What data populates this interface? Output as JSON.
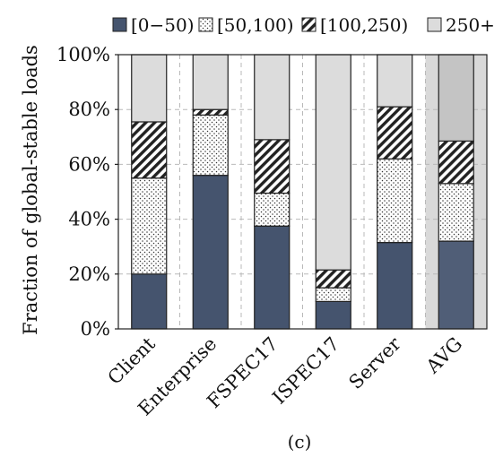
{
  "chart_data": {
    "type": "bar",
    "stacked": true,
    "categories": [
      "Client",
      "Enterprise",
      "FSPEC17",
      "ISPEC17",
      "Server",
      "AVG"
    ],
    "series": [
      {
        "name": "[0−50)",
        "values": [
          20,
          56,
          37.5,
          10,
          31.5,
          32
        ],
        "color": "#45546e",
        "pattern": "solid"
      },
      {
        "name": "[50,100)",
        "values": [
          35,
          22,
          12,
          5,
          30.5,
          21
        ],
        "color": "#ffffff",
        "pattern": "dots"
      },
      {
        "name": "[100,250)",
        "values": [
          20.5,
          2,
          19.5,
          6.5,
          19,
          15.5
        ],
        "color": "#ffffff",
        "pattern": "hatch"
      },
      {
        "name": "250+",
        "values": [
          24.5,
          20,
          31,
          78.5,
          19,
          31.5
        ],
        "color": "#dcdcdc",
        "pattern": "solid"
      }
    ],
    "ylabel": "Fraction of global-stable loads",
    "ylim": [
      0,
      100
    ],
    "yticks": [
      "0%",
      "20%",
      "40%",
      "60%",
      "80%",
      "100%"
    ],
    "grid": true,
    "legend_position": "top",
    "highlight_category": "AVG",
    "caption": "(c)"
  }
}
